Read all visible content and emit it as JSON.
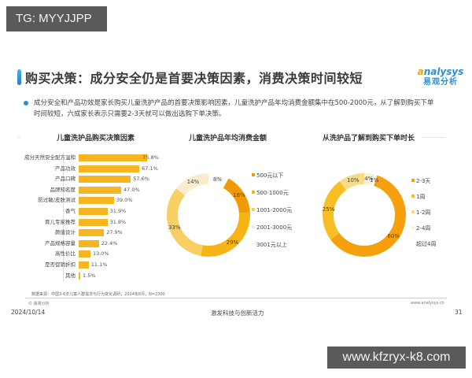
{
  "watermarks": {
    "top_left": "TG: MYYJJPP",
    "bottom_right": "www.kfzryx-k8.com"
  },
  "header": {
    "title": "购买决策：成分安全仍是首要决策因素，消费决策时间较短",
    "logo_en": "nalysys",
    "logo_en_initial": "a",
    "logo_cn": "易观分析"
  },
  "summary": {
    "line1": "成分安全和产品功效是家长购买儿童洗护产品的首要决策影响因素，儿童洗护产品年均消费金额集中在500-2000元，从了解到购买下单",
    "line2": "时间较短，六成家长表示只需要2-3天就可以做出选购下单决策。"
  },
  "colors": {
    "bar": "#f5b622",
    "accent_blue": "#2b8fcf"
  },
  "chart_data": [
    {
      "type": "bar",
      "orientation": "horizontal",
      "title": "儿童洗护品购买决策因素",
      "categories": [
        "成分天然安全配方温和",
        "产品功效",
        "产品口碑",
        "品牌知名度",
        "防过敏/皮肤测试",
        "香气",
        "育儿专家推荐",
        "颜值设计",
        "产品规格容量",
        "高性价比",
        "是否促销折扣",
        "其他"
      ],
      "values": [
        75.8,
        67.1,
        57.6,
        47.0,
        39.0,
        31.9,
        31.8,
        27.9,
        22.4,
        13.0,
        11.1,
        1.5
      ],
      "value_labels": [
        "75.8%",
        "67.1%",
        "57.6%",
        "47.0%",
        "39.0%",
        "31.9%",
        "31.8%",
        "27.9%",
        "22.4%",
        "13.0%",
        "11.1%",
        "1.5%"
      ],
      "unit": "%",
      "xlim": [
        0,
        100
      ],
      "grid": false
    },
    {
      "type": "pie",
      "variant": "donut",
      "title": "儿童洗护品年均消费金额",
      "categories": [
        "500元以下",
        "500-1000元",
        "1001-2000元",
        "2001-3000元",
        "3001元以上"
      ],
      "values": [
        16,
        29,
        33,
        14,
        8
      ],
      "value_labels": [
        "16%",
        "29%",
        "33%",
        "14%",
        "8%"
      ],
      "colors": [
        "#f29a05",
        "#f6b416",
        "#f8cf62",
        "#fbecd0",
        "#ffffff"
      ],
      "legend_position": "right"
    },
    {
      "type": "pie",
      "variant": "donut",
      "title": "从洗护品了解到购买下单时长",
      "categories": [
        "2-3天",
        "1周",
        "1-2周",
        "2-4周",
        "超过4周"
      ],
      "values": [
        60,
        25,
        10,
        4,
        1
      ],
      "value_labels": [
        "60%",
        "25%",
        "10%",
        "4%",
        "1%"
      ],
      "colors": [
        "#f5a00c",
        "#f7bf24",
        "#f6dc82",
        "#f7f1dc",
        "#ffffff"
      ],
      "legend_position": "right"
    }
  ],
  "footer": {
    "source": "数据来源：中国3-6岁儿童人群需求与行为变化调研，2024年8月，N=2300",
    "copyright": "© 易观分析",
    "website": "www.analysys.cn",
    "date": "2024/10/14",
    "slogan": "激发科技与创新活力",
    "page": "31"
  }
}
